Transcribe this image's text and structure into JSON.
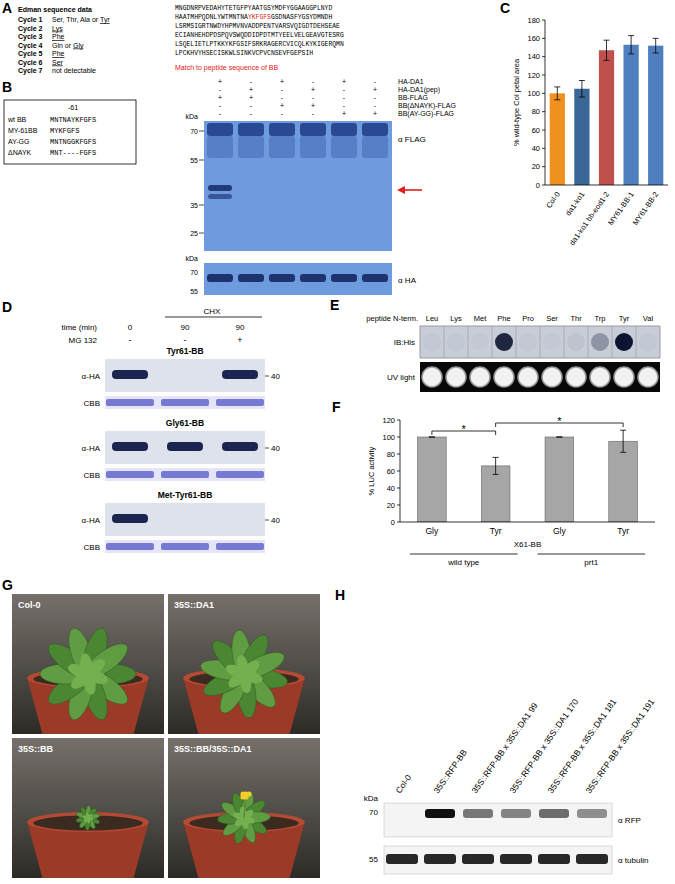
{
  "chart_data": [
    {
      "type": "bar",
      "categories": [
        "Col-0",
        "da1-ko1",
        "da1-ko1 bb-eod1-2",
        "MY61-BB-1",
        "MY61-BB-2"
      ],
      "values": [
        100,
        105,
        147,
        153,
        152
      ],
      "errors": [
        7,
        9,
        11,
        10,
        8
      ],
      "colors": [
        "#f0901f",
        "#3a6796",
        "#c0504d",
        "#4f7fbf",
        "#4f7fbf"
      ],
      "ylim": [
        0,
        180
      ],
      "yticks": [
        0,
        20,
        40,
        60,
        80,
        100,
        120,
        140,
        160,
        180
      ],
      "y_label": "% wild-type Col petal area"
    },
    {
      "type": "bar",
      "categories": [
        "Gly",
        "Tyr",
        "Gly",
        "Tyr"
      ],
      "values": [
        100,
        66,
        100,
        95
      ],
      "errors": [
        0,
        10,
        0,
        13
      ],
      "color": "#a6a6a6",
      "ylim": [
        0,
        120
      ],
      "yticks": [
        0,
        20,
        40,
        60,
        80,
        100,
        120
      ],
      "y_label": "% LUC activity",
      "x_label": "X61-BB",
      "groups": [
        {
          "name": "wild type",
          "from": 0,
          "to": 1
        },
        {
          "name": "prt1",
          "from": 2,
          "to": 3
        }
      ],
      "annotations": [
        {
          "text": "*",
          "from": 0,
          "to": 1
        },
        {
          "text": "*",
          "from": 1,
          "to": 3
        }
      ]
    }
  ],
  "panels": {
    "A": {
      "label": "A",
      "title": "Edman sequence data",
      "cycles": [
        {
          "cycle": "Cycle 1",
          "prefix": "Ser, Thr, Ala or ",
          "residue": "Tyr"
        },
        {
          "cycle": "Cycle 2",
          "residue": "Lys"
        },
        {
          "cycle": "Cycle 3",
          "residue": "Phe"
        },
        {
          "cycle": "Cycle 4",
          "prefix": "Gln or ",
          "residue": "Gly"
        },
        {
          "cycle": "Cycle 5",
          "residue": "Phe"
        },
        {
          "cycle": "Cycle 6",
          "residue": "Ser"
        },
        {
          "cycle": "Cycle 7",
          "note": "not detectable"
        }
      ],
      "sequence": [
        [
          {
            "text": "MNGDNRPVEDAHYTETGFPYAATGSYMDFYGGAAGGPLNYD"
          }
        ],
        [
          {
            "text": "HAATMHPQDNLYWTMNTNA"
          },
          {
            "text": "YKFGFS",
            "match": true
          },
          {
            "text": "GSDNASFYGSYDMNDH"
          }
        ],
        [
          {
            "text": "LSRMSIGRTNWDYHPMVNVADDPENTVARSVQIGDTDEHSEAE"
          }
        ],
        [
          {
            "text": "ECIANHEHDPDSPQVSWQDDIDPDTMTYEELVELGEAVGTESRG"
          }
        ],
        [
          {
            "text": "LSQELIETLPTKKYKFGSIFSRKRAGERCVICQLKYKIGERQMN"
          }
        ],
        [
          {
            "text": "LPCKHVYHSECISKWLSINKVCPVCNSEVFGEPSIH"
          }
        ]
      ],
      "note": "Match to peptide sequence of BB"
    },
    "B": {
      "label": "B",
      "inset_header": "-61",
      "constructs": [
        {
          "name": "wt BB",
          "seq": "MNTNAYKFGFS"
        },
        {
          "name": "MY-61BB",
          "seq": "MYKFGFS"
        },
        {
          "name": "AY-GG",
          "seq": "MNTNGGKFGFS"
        },
        {
          "name": "ΔNAYK",
          "seq": "MNT----FGFS"
        }
      ],
      "rows": [
        {
          "name": "HA-DA1",
          "signs": [
            "+",
            "-",
            "+",
            "-",
            "+",
            "-"
          ]
        },
        {
          "name": "HA-DA1(pep)",
          "signs": [
            "-",
            "+",
            "-",
            "+",
            "-",
            "+"
          ]
        },
        {
          "name": "BB-FLAG",
          "signs": [
            "+",
            "+",
            "-",
            "-",
            "-",
            "-"
          ]
        },
        {
          "name": "BB(ΔNAYK)-FLAG",
          "signs": [
            "-",
            "-",
            "+",
            "+",
            "-",
            "-"
          ]
        },
        {
          "name": "BB(AY-GG)-FLAG",
          "signs": [
            "-",
            "-",
            "-",
            "-",
            "+",
            "+"
          ]
        }
      ],
      "kda_label": "kDa",
      "upper_markers": [
        70,
        55,
        35,
        25
      ],
      "lower_markers": [
        70,
        55
      ],
      "upper_antibody": "α FLAG",
      "lower_antibody": "α HA"
    },
    "C": {
      "label": "C"
    },
    "D": {
      "label": "D",
      "treatment": "CHX",
      "time_label": "time (min)",
      "times": [
        0,
        90,
        90
      ],
      "mg_label": "MG 132",
      "mg": [
        "-",
        "-",
        "+"
      ],
      "blots": [
        "Tyr61-BB",
        "Gly61-BB",
        "Met-Tyr61-BB"
      ],
      "antibody": "α-HA",
      "loading": "CBB",
      "marker": 40
    },
    "E": {
      "label": "E",
      "header": "peptide N-term.",
      "residues": [
        "Leu",
        "Lys",
        "Met",
        "Phe",
        "Pro",
        "Ser",
        "Thr",
        "Trp",
        "Tyr",
        "Val"
      ],
      "rows": [
        "IB:His",
        "UV light"
      ]
    },
    "F": {
      "label": "F"
    },
    "G": {
      "label": "G",
      "plants": [
        "Col-0",
        "35S::DA1",
        "35S::BB",
        "35S::BB/35S::DA1"
      ]
    },
    "H": {
      "label": "H",
      "lanes": [
        "Col-0",
        "35S::RFP-BB",
        "35S::RFP-BB x 35S::DA1 99",
        "35S::RFP-BB x 35S::DA1 170",
        "35S::RFP-BB x 35S::DA1 181",
        "35S::RFP-BB x 35S::DA1 191"
      ],
      "kda_label": "kDa",
      "markers": [
        70,
        55
      ],
      "antibodies": [
        "α RFP",
        "α tubulin"
      ]
    }
  }
}
